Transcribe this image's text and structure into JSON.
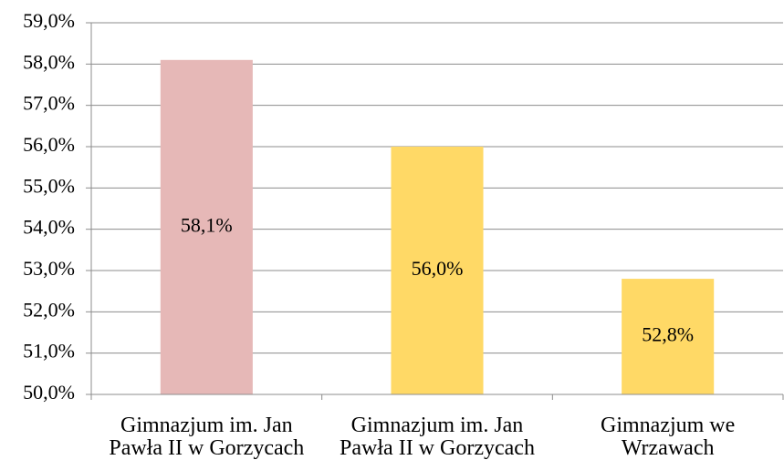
{
  "chart_data": {
    "type": "bar",
    "categories": [
      "Gimnazjum im. Jan Pawła II w Gorzycach",
      "Gimnazjum im. Jan Pawła II w Gorzycach",
      "Gimnazjum we Wrzawach"
    ],
    "values": [
      58.1,
      56.0,
      52.8
    ],
    "value_labels": [
      "58,1%",
      "56,0%",
      "52,8%"
    ],
    "colors": [
      "#e6b8b7",
      "#ffd966",
      "#ffd966"
    ],
    "ylim": [
      50,
      59
    ],
    "yticks": [
      {
        "value": 50,
        "label": "50,0%"
      },
      {
        "value": 51,
        "label": "51,0%"
      },
      {
        "value": 52,
        "label": "52,0%"
      },
      {
        "value": 53,
        "label": "53,0%"
      },
      {
        "value": 54,
        "label": "54,0%"
      },
      {
        "value": 55,
        "label": "55,0%"
      },
      {
        "value": 56,
        "label": "56,0%"
      },
      {
        "value": 57,
        "label": "57,0%"
      },
      {
        "value": 58,
        "label": "58,0%"
      },
      {
        "value": 59,
        "label": "59,0%"
      }
    ],
    "grid": true
  }
}
